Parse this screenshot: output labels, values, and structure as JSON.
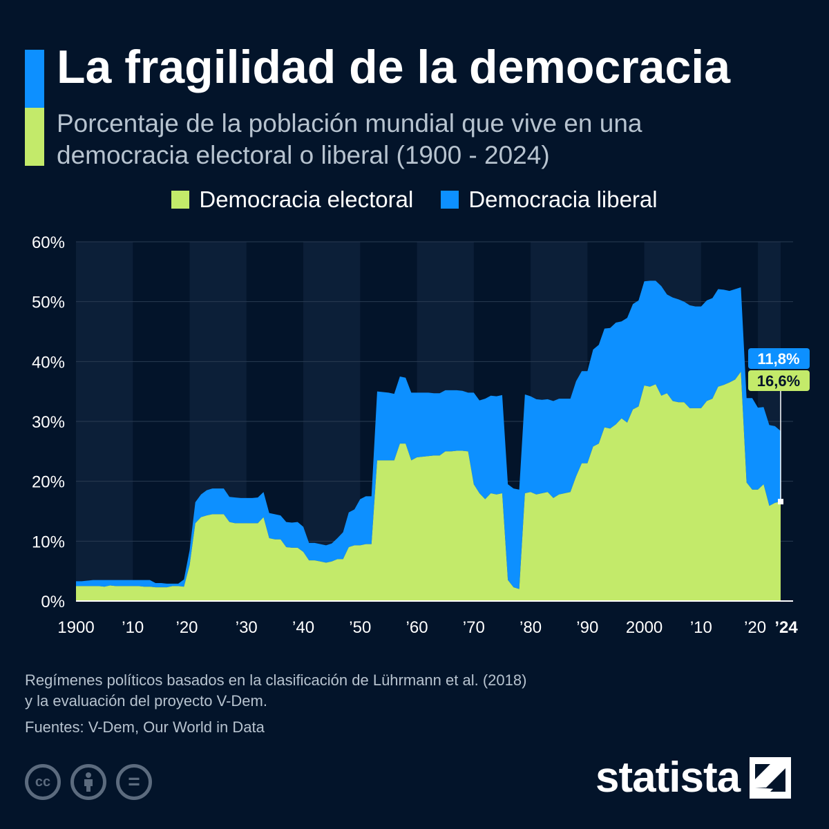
{
  "header": {
    "title": "La fragilidad de la democracia",
    "subtitle": "Porcentaje de la población mundial que vive en una democracia electoral o liberal (1900 - 2024)"
  },
  "legend": {
    "electoral": "Democracia electoral",
    "liberal": "Democracia liberal"
  },
  "colors": {
    "background": "#03142a",
    "band": "#0c1f38",
    "electoral": "#c3ea6a",
    "liberal": "#0d90ff",
    "grid": "#2a3b52",
    "muted_text": "#b7c3cf"
  },
  "chart_data": {
    "type": "area",
    "stacked": true,
    "title": "La fragilidad de la democracia",
    "subtitle": "Porcentaje de la población mundial que vive en una democracia electoral o liberal (1900 - 2024)",
    "xlabel": "",
    "ylabel": "",
    "ylim": [
      0,
      60
    ],
    "y_ticks": [
      0,
      10,
      20,
      30,
      40,
      50,
      60
    ],
    "y_tick_labels": [
      "0%",
      "10%",
      "20%",
      "30%",
      "40%",
      "50%",
      "60%"
    ],
    "x_ticks": [
      1900,
      1910,
      1920,
      1930,
      1940,
      1950,
      1960,
      1970,
      1980,
      1990,
      2000,
      2010,
      2020,
      2024
    ],
    "x_tick_labels": [
      "1900",
      "’10",
      "’20",
      "’30",
      "’40",
      "’50",
      "’60",
      "’70",
      "’80",
      "’90",
      "2000",
      "’10",
      "’20",
      "’24"
    ],
    "grid": true,
    "legend_position": "top-center",
    "x": [
      1900,
      1901,
      1902,
      1903,
      1904,
      1905,
      1906,
      1907,
      1908,
      1909,
      1910,
      1911,
      1912,
      1913,
      1914,
      1915,
      1916,
      1917,
      1918,
      1919,
      1920,
      1921,
      1922,
      1923,
      1924,
      1925,
      1926,
      1927,
      1928,
      1929,
      1930,
      1931,
      1932,
      1933,
      1934,
      1935,
      1936,
      1937,
      1938,
      1939,
      1940,
      1941,
      1942,
      1943,
      1944,
      1945,
      1946,
      1947,
      1948,
      1949,
      1950,
      1951,
      1952,
      1953,
      1954,
      1955,
      1956,
      1957,
      1958,
      1959,
      1960,
      1961,
      1962,
      1963,
      1964,
      1965,
      1966,
      1967,
      1968,
      1969,
      1970,
      1971,
      1972,
      1973,
      1974,
      1975,
      1976,
      1977,
      1978,
      1979,
      1980,
      1981,
      1982,
      1983,
      1984,
      1985,
      1986,
      1987,
      1988,
      1989,
      1990,
      1991,
      1992,
      1993,
      1994,
      1995,
      1996,
      1997,
      1998,
      1999,
      2000,
      2001,
      2002,
      2003,
      2004,
      2005,
      2006,
      2007,
      2008,
      2009,
      2010,
      2011,
      2012,
      2013,
      2014,
      2015,
      2016,
      2017,
      2018,
      2019,
      2020,
      2021,
      2022,
      2023,
      2024
    ],
    "series": [
      {
        "name": "Democracia electoral",
        "values": [
          2.5,
          2.5,
          2.5,
          2.5,
          2.5,
          2.4,
          2.6,
          2.5,
          2.5,
          2.5,
          2.5,
          2.5,
          2.4,
          2.4,
          2.3,
          2.3,
          2.3,
          2.5,
          2.5,
          2.4,
          6.0,
          13.0,
          14.0,
          14.3,
          14.5,
          14.5,
          14.5,
          13.2,
          13.0,
          13.0,
          13.0,
          13.0,
          13.0,
          14.0,
          10.5,
          10.3,
          10.3,
          9.0,
          8.9,
          8.9,
          8.2,
          6.8,
          6.8,
          6.6,
          6.4,
          6.6,
          7.0,
          7.0,
          9.0,
          9.3,
          9.3,
          9.5,
          9.5,
          23.5,
          23.5,
          23.5,
          23.5,
          26.3,
          26.3,
          23.5,
          24.0,
          24.1,
          24.2,
          24.3,
          24.3,
          25.0,
          25.0,
          25.1,
          25.1,
          25.0,
          19.5,
          18.0,
          17.0,
          18.0,
          17.8,
          18.0,
          3.5,
          2.3,
          2.0,
          18.0,
          18.2,
          17.8,
          18.0,
          18.2,
          17.2,
          17.8,
          18.0,
          18.2,
          20.8,
          23.0,
          23.0,
          25.8,
          26.3,
          29.0,
          28.8,
          29.5,
          30.5,
          29.8,
          32.0,
          32.5,
          36.0,
          35.8,
          36.2,
          34.3,
          34.7,
          33.4,
          33.2,
          33.2,
          32.2,
          32.2,
          32.2,
          33.4,
          33.8,
          35.8,
          36.1,
          36.5,
          37.0,
          38.3,
          19.8,
          18.6,
          18.6,
          19.5,
          15.9,
          16.4,
          16.6
        ]
      },
      {
        "name": "Democracia liberal",
        "values": [
          0.8,
          0.8,
          0.9,
          1.0,
          1.0,
          1.1,
          0.9,
          1.0,
          1.0,
          1.0,
          1.0,
          1.0,
          1.1,
          1.1,
          0.7,
          0.7,
          0.6,
          0.4,
          0.4,
          1.2,
          2.5,
          3.5,
          3.8,
          4.2,
          4.3,
          4.3,
          4.3,
          4.2,
          4.3,
          4.2,
          4.2,
          4.2,
          4.3,
          4.2,
          4.2,
          4.2,
          4.0,
          4.2,
          4.2,
          4.3,
          4.2,
          2.9,
          2.9,
          2.9,
          2.9,
          3.0,
          3.5,
          4.5,
          5.8,
          6.0,
          7.7,
          8.0,
          8.0,
          11.5,
          11.4,
          11.3,
          11.1,
          11.2,
          11.0,
          11.3,
          10.8,
          10.7,
          10.6,
          10.4,
          10.4,
          10.2,
          10.2,
          10.1,
          10.0,
          9.8,
          15.3,
          15.5,
          16.8,
          16.3,
          16.4,
          16.4,
          16.0,
          16.5,
          16.6,
          16.5,
          16.0,
          15.9,
          15.6,
          15.5,
          16.2,
          16.0,
          15.8,
          15.6,
          15.9,
          15.4,
          15.4,
          16.2,
          16.5,
          16.5,
          16.8,
          17.0,
          16.2,
          17.5,
          17.6,
          17.7,
          17.4,
          17.7,
          17.3,
          18.3,
          16.5,
          17.3,
          17.2,
          16.8,
          17.2,
          17.0,
          17.0,
          16.8,
          16.8,
          16.3,
          15.9,
          15.3,
          15.1,
          14.1,
          14.1,
          15.3,
          13.7,
          12.9,
          13.5,
          12.8,
          11.8
        ]
      }
    ],
    "annotations": [
      {
        "series": "Democracia liberal",
        "year": 2024,
        "label": "11,8%"
      },
      {
        "series": "Democracia electoral",
        "year": 2024,
        "label": "16,6%"
      }
    ]
  },
  "footer": {
    "note_line1": "Regímenes políticos basados en la clasificación de Lührmann et al. (2018)",
    "note_line2": "y la evaluación del proyecto V-Dem.",
    "sources": "Fuentes: V-Dem, Our World in Data",
    "brand": "statista",
    "cc_icons": [
      {
        "name": "cc-icon",
        "glyph": "cc"
      },
      {
        "name": "by-icon",
        "glyph": ""
      },
      {
        "name": "nd-icon",
        "glyph": "="
      }
    ]
  }
}
